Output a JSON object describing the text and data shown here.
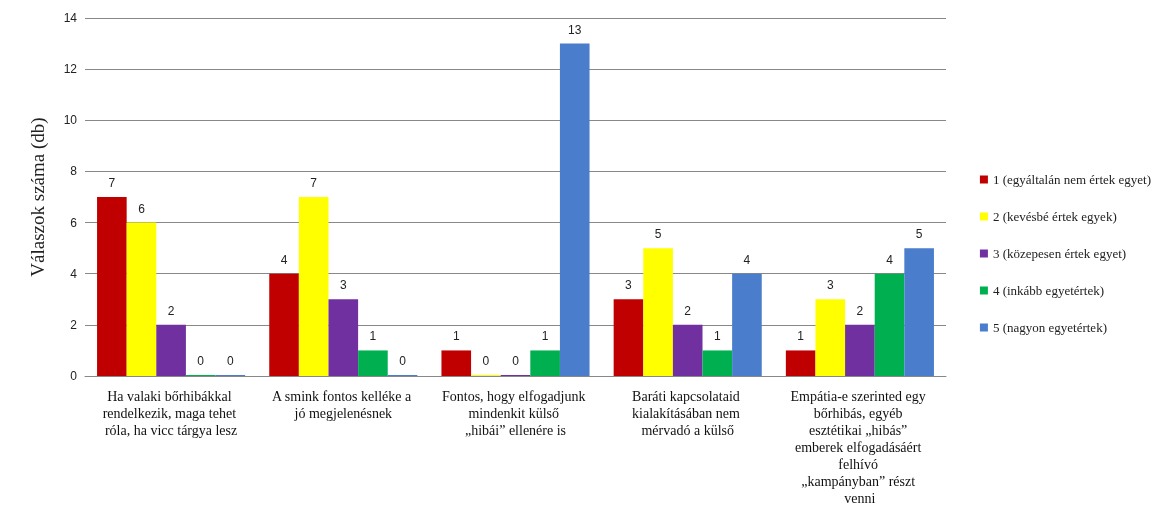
{
  "chart_data": {
    "type": "bar",
    "ylabel": "Válaszok száma (db)",
    "categories": [
      "Ha valaki bőrhibákkal rendelkezik, maga tehet róla, ha vicc tárgya lesz",
      "A smink fontos kelléke a jó megjelenésnek",
      "Fontos, hogy elfogadjunk mindenkit külső „hibái” ellenére is",
      "Baráti kapcsolataid kialakításában nem mérvadó a külső",
      "Empátia-e szerinted egy bőrhibás, egyéb esztétikai „hibás” emberek elfogadásáért felhívó „kampányban” részt venni"
    ],
    "series": [
      {
        "name": "1 (egyáltalán nem értek egyet)",
        "color": "#c00000",
        "values": [
          7,
          4,
          1,
          3,
          1
        ]
      },
      {
        "name": "2 (kevésbé értek egyek)",
        "color": "#ffff00",
        "values": [
          6,
          7,
          0,
          5,
          3
        ]
      },
      {
        "name": "3 (közepesen értek egyet)",
        "color": "#7030a0",
        "values": [
          2,
          3,
          0,
          2,
          2
        ]
      },
      {
        "name": "4 (inkább egyetértek)",
        "color": "#00b050",
        "values": [
          0,
          1,
          1,
          1,
          4
        ]
      },
      {
        "name": "5 (nagyon egyetértek)",
        "color": "#4a7dcb",
        "values": [
          0,
          0,
          13,
          4,
          5
        ]
      }
    ],
    "ylim": [
      0,
      14
    ],
    "yticks": [
      0,
      2,
      4,
      6,
      8,
      10,
      12,
      14
    ],
    "grid": "y",
    "legend": "right",
    "data_labels": true
  }
}
